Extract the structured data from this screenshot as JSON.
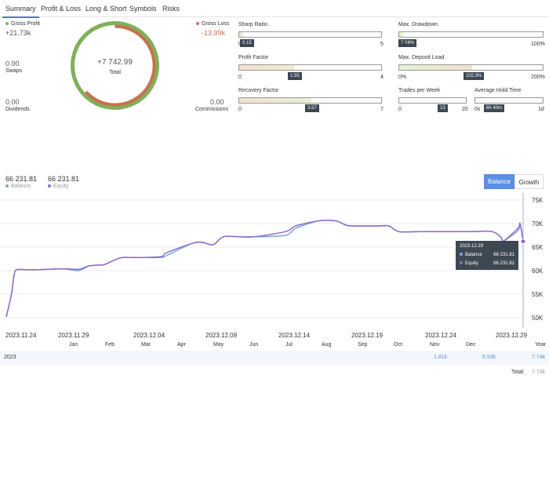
{
  "tabs": [
    {
      "label": "Summary",
      "active": true
    },
    {
      "label": "Profit & Loss"
    },
    {
      "label": "Long & Short"
    },
    {
      "label": "Symbols"
    },
    {
      "label": "Risks"
    }
  ],
  "summary": {
    "gross_profit": {
      "label": "Gross Profit",
      "value": "+21.73k",
      "color": "#7fb05a"
    },
    "gross_loss": {
      "label": "Gross Loss",
      "value": "-13.99k",
      "color": "#c8714f"
    },
    "swaps": {
      "label": "Swaps",
      "value": "0.00"
    },
    "dividends": {
      "label": "Dividends",
      "value": "0.00"
    },
    "commissions": {
      "label": "Commissions",
      "value": "0.00"
    },
    "total": {
      "label": "Total",
      "value": "+7 742.99"
    }
  },
  "metrics": {
    "sharp_ratio": {
      "label": "Sharp Ratio",
      "value": "0.15",
      "min": "0",
      "max": "5",
      "fraction": 0.03
    },
    "profit_factor": {
      "label": "Profit Factor",
      "value": "1.55",
      "min": "0",
      "max": "4",
      "fraction": 0.39
    },
    "recovery_factor": {
      "label": "Recovery Factor",
      "value": "3.57",
      "min": "0",
      "max": "7",
      "fraction": 0.51
    },
    "max_drawdown": {
      "label": "Max. Drawdown",
      "value": "3.04%",
      "min": "0%",
      "max": "100%",
      "fraction": 0.03
    },
    "max_deposit_load": {
      "label": "Max. Deposit Load",
      "value": "102.3%",
      "min": "0%",
      "max": "200%",
      "fraction": 0.51
    },
    "trades_per_week": {
      "label": "Trades per Week",
      "value": "13",
      "min": "0",
      "max": "20",
      "fraction": 0.65
    },
    "avg_hold_time": {
      "label": "Average Hold Time",
      "value": "6h 40m",
      "min": "0s",
      "max": "1d",
      "fraction": 0.28
    }
  },
  "legend": {
    "balance": {
      "value": "66 231.81",
      "label": "Balance",
      "color": "#7ea6d9"
    },
    "equity": {
      "value": "66 231.81",
      "label": "Equity",
      "color": "#8e6bc9"
    }
  },
  "buttons": {
    "balance": "Balance",
    "growth": "Growth"
  },
  "tooltip": {
    "date": "2023.12.29",
    "balance_label": "Balance",
    "balance_value": "66 231.81",
    "equity_label": "Equity",
    "equity_value": "66 231.81"
  },
  "chart_data": {
    "type": "line",
    "x_ticks": [
      "2023.11.24",
      "2023.11.29",
      "2023.12.04",
      "2023.12.09",
      "2023.12.14",
      "2023.12.19",
      "2023.12.24",
      "2023.12.29"
    ],
    "y_ticks": [
      "75K",
      "70K",
      "65K",
      "60K",
      "55K",
      "50K"
    ],
    "ylim": [
      48500,
      76000
    ],
    "grid": true,
    "series": [
      {
        "name": "Balance",
        "color": "#7ea6d9",
        "x": [
          0,
          0.01,
          0.015,
          0.02,
          0.04,
          0.06,
          0.11,
          0.14,
          0.16,
          0.18,
          0.19,
          0.22,
          0.24,
          0.26,
          0.3,
          0.31,
          0.36,
          0.38,
          0.4,
          0.42,
          0.45,
          0.48,
          0.54,
          0.56,
          0.6,
          0.62,
          0.64,
          0.66,
          0.68,
          0.7,
          0.72,
          0.74,
          0.76,
          0.8,
          0.86,
          0.9,
          0.94,
          0.958,
          0.962,
          0.99,
          0.994,
          1.0
        ],
        "y": [
          50200,
          55000,
          59000,
          60200,
          60200,
          60200,
          60400,
          60000,
          61000,
          61200,
          61300,
          62700,
          62800,
          62800,
          62800,
          63200,
          65800,
          66000,
          65500,
          67200,
          67200,
          67200,
          67500,
          69000,
          70500,
          70700,
          70500,
          69600,
          69500,
          69500,
          69500,
          69500,
          68300,
          68300,
          68300,
          68300,
          68300,
          67000,
          66300,
          68500,
          70000,
          66231.81
        ]
      },
      {
        "name": "Equity",
        "color": "#8e6bc9",
        "x": [
          0,
          0.01,
          0.015,
          0.02,
          0.04,
          0.06,
          0.11,
          0.14,
          0.16,
          0.18,
          0.19,
          0.22,
          0.24,
          0.26,
          0.3,
          0.31,
          0.36,
          0.38,
          0.4,
          0.42,
          0.45,
          0.48,
          0.54,
          0.56,
          0.6,
          0.62,
          0.64,
          0.66,
          0.68,
          0.7,
          0.72,
          0.74,
          0.76,
          0.8,
          0.86,
          0.9,
          0.94,
          0.958,
          0.962,
          0.99,
          0.994,
          1.0
        ],
        "y": [
          50200,
          55000,
          59000,
          60200,
          60200,
          60200,
          60400,
          60300,
          61000,
          61200,
          61300,
          62700,
          62800,
          62800,
          63000,
          63800,
          65800,
          66000,
          65500,
          67200,
          67200,
          67200,
          68300,
          69500,
          70500,
          70700,
          70500,
          69600,
          69500,
          69500,
          69500,
          69500,
          68300,
          68300,
          68300,
          68300,
          68300,
          67000,
          66300,
          69000,
          70000,
          66231.81
        ]
      }
    ]
  },
  "months": [
    "Jan",
    "Feb",
    "Mar",
    "Apr",
    "May",
    "Jun",
    "Jul",
    "Aug",
    "Sep",
    "Oct",
    "Nov",
    "Dec",
    "Year"
  ],
  "yearly": {
    "year": "2023",
    "nov": "1.81k",
    "dec": "5.93k",
    "total": "7.74k",
    "total_label": "Total:",
    "total_value": "7.74k"
  }
}
